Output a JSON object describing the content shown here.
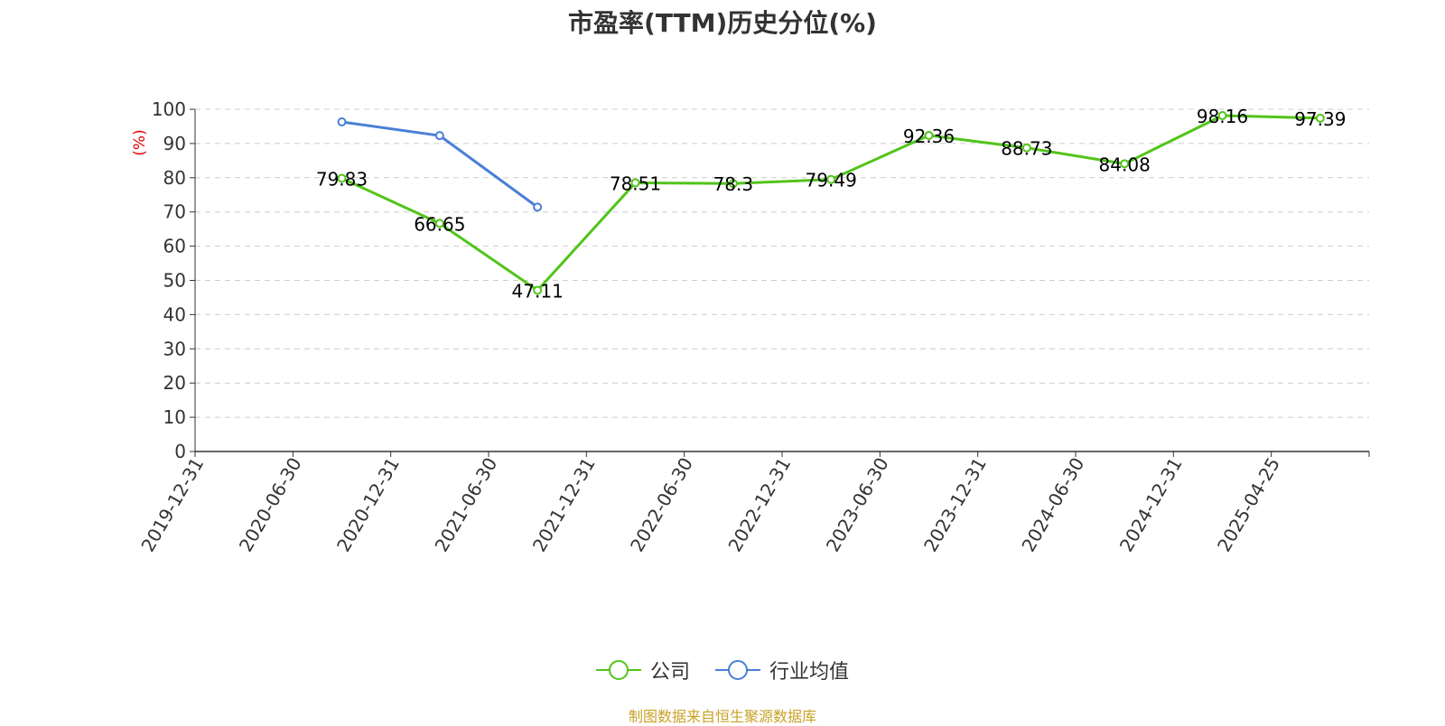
{
  "chart_data": {
    "type": "line",
    "title": "市盈率(TTM)历史分位(%)",
    "ylabel": "(%)",
    "ylim": [
      0,
      100
    ],
    "yticks": [
      "0",
      "10",
      "20",
      "30",
      "40",
      "50",
      "60",
      "70",
      "80",
      "90",
      "100"
    ],
    "categories": [
      "2019-12-31",
      "2020-06-30",
      "2020-12-31",
      "2021-06-30",
      "2021-12-31",
      "2022-06-30",
      "2022-12-31",
      "2023-06-30",
      "2023-12-31",
      "2024-06-30",
      "2024-12-31",
      "2025-04-25"
    ],
    "series": [
      {
        "name": "公司",
        "color": "#52c41a",
        "values": [
          null,
          79.83,
          66.65,
          47.11,
          78.51,
          78.3,
          79.49,
          92.36,
          88.73,
          84.08,
          98.16,
          97.39
        ],
        "labels": [
          "",
          "79.83",
          "66.65",
          "47.11",
          "78.51",
          "78.3",
          "79.49",
          "92.36",
          "88.73",
          "84.08",
          "98.16",
          "97.39"
        ]
      },
      {
        "name": "行业均值",
        "color": "#4a7fd6",
        "values": [
          null,
          96.3,
          92.3,
          71.4,
          null,
          null,
          null,
          null,
          null,
          null,
          null,
          null
        ]
      }
    ],
    "grid": true,
    "legend_position": "bottom-center"
  },
  "source": "制图数据来自恒生聚源数据库"
}
